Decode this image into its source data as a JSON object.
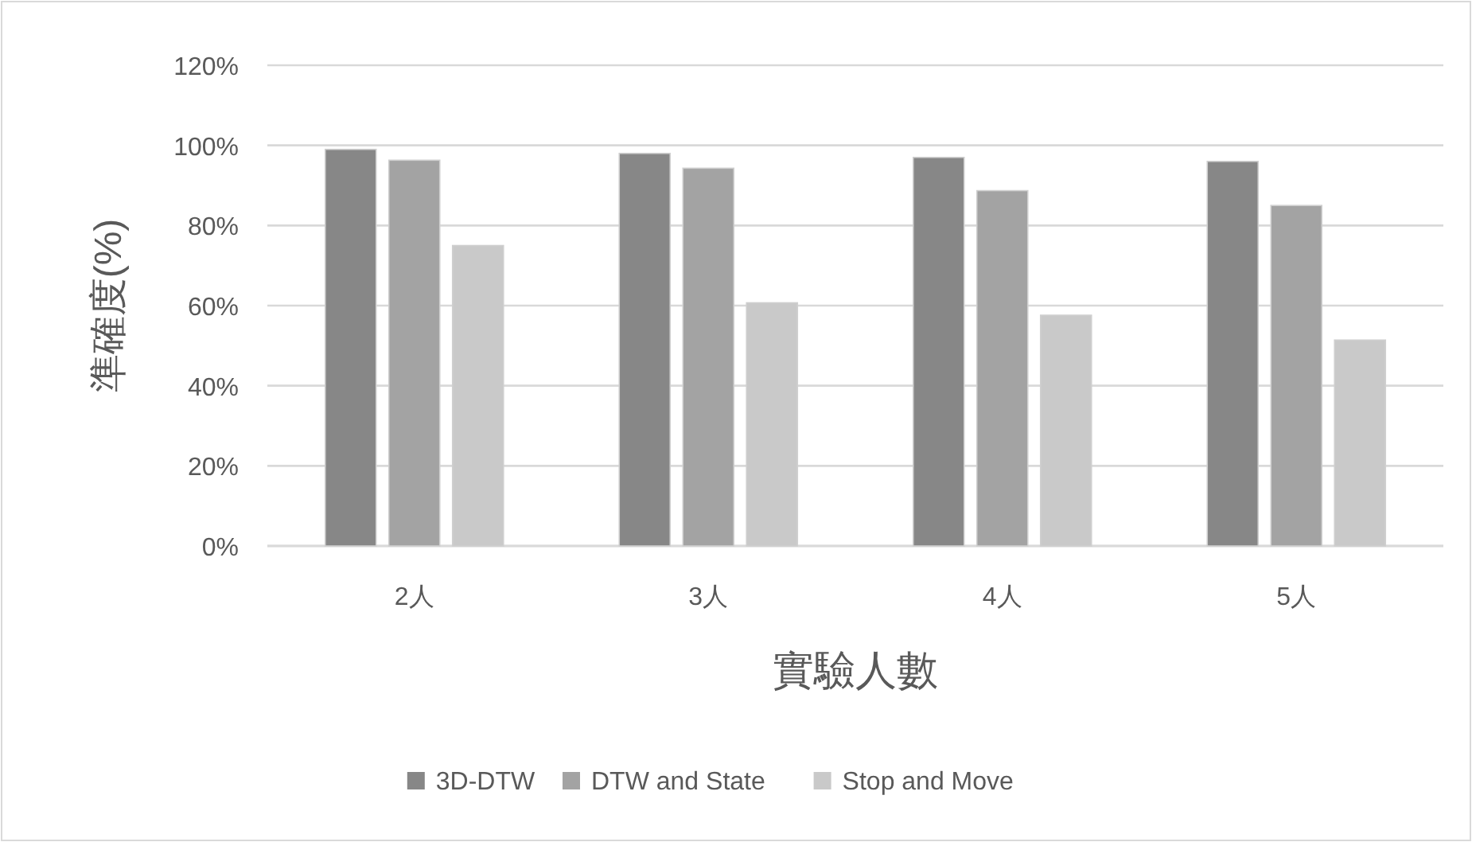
{
  "chart_data": {
    "type": "bar",
    "xlabel": "實驗人數",
    "ylabel": "準確度(%)",
    "categories": [
      "2人",
      "3人",
      "4人",
      "5人"
    ],
    "series": [
      {
        "name": "3D-DTW",
        "color": "#878787",
        "values": [
          99,
          98,
          97,
          96
        ]
      },
      {
        "name": "DTW and State",
        "color": "#a3a3a3",
        "values": [
          96.3,
          94.3,
          88.7,
          85
        ]
      },
      {
        "name": "Stop and Move",
        "color": "#c9c9c9",
        "values": [
          75,
          60.7,
          57.6,
          51.4
        ]
      }
    ],
    "ylim": [
      0,
      120
    ],
    "yticks": [
      {
        "value": 0,
        "label": "0%"
      },
      {
        "value": 20,
        "label": "20%"
      },
      {
        "value": 40,
        "label": "40%"
      },
      {
        "value": 60,
        "label": "60%"
      },
      {
        "value": 80,
        "label": "80%"
      },
      {
        "value": 100,
        "label": "100%"
      },
      {
        "value": 120,
        "label": "120%"
      }
    ],
    "grid": "y",
    "legend": "bottom"
  }
}
